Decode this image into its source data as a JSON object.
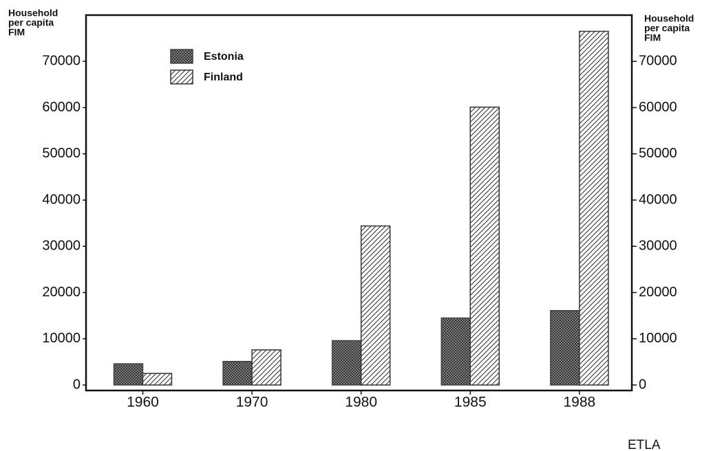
{
  "chart_data": {
    "type": "bar",
    "ylabel": [
      "Household",
      "per capita",
      "FIM"
    ],
    "y2label": [
      "Household",
      "per capita",
      "FIM"
    ],
    "categories": [
      "1960",
      "1970",
      "1980",
      "1985",
      "1988"
    ],
    "series": [
      {
        "name": "Estonia",
        "color": "#444444",
        "pattern": "crosshatch",
        "values": [
          4600,
          5100,
          9600,
          14500,
          16100
        ]
      },
      {
        "name": "Finland",
        "color": "#333333",
        "pattern": "diagonal",
        "values": [
          2500,
          7600,
          34400,
          60100,
          76500
        ]
      }
    ],
    "ylim": [
      0,
      80000
    ],
    "yticks": [
      0,
      10000,
      20000,
      30000,
      40000,
      50000,
      60000,
      70000
    ],
    "y2lim": [
      0,
      80000
    ],
    "y2ticks": [
      0,
      10000,
      20000,
      30000,
      40000,
      50000,
      60000,
      70000
    ],
    "legend": "upper left",
    "source": "ETLA"
  }
}
